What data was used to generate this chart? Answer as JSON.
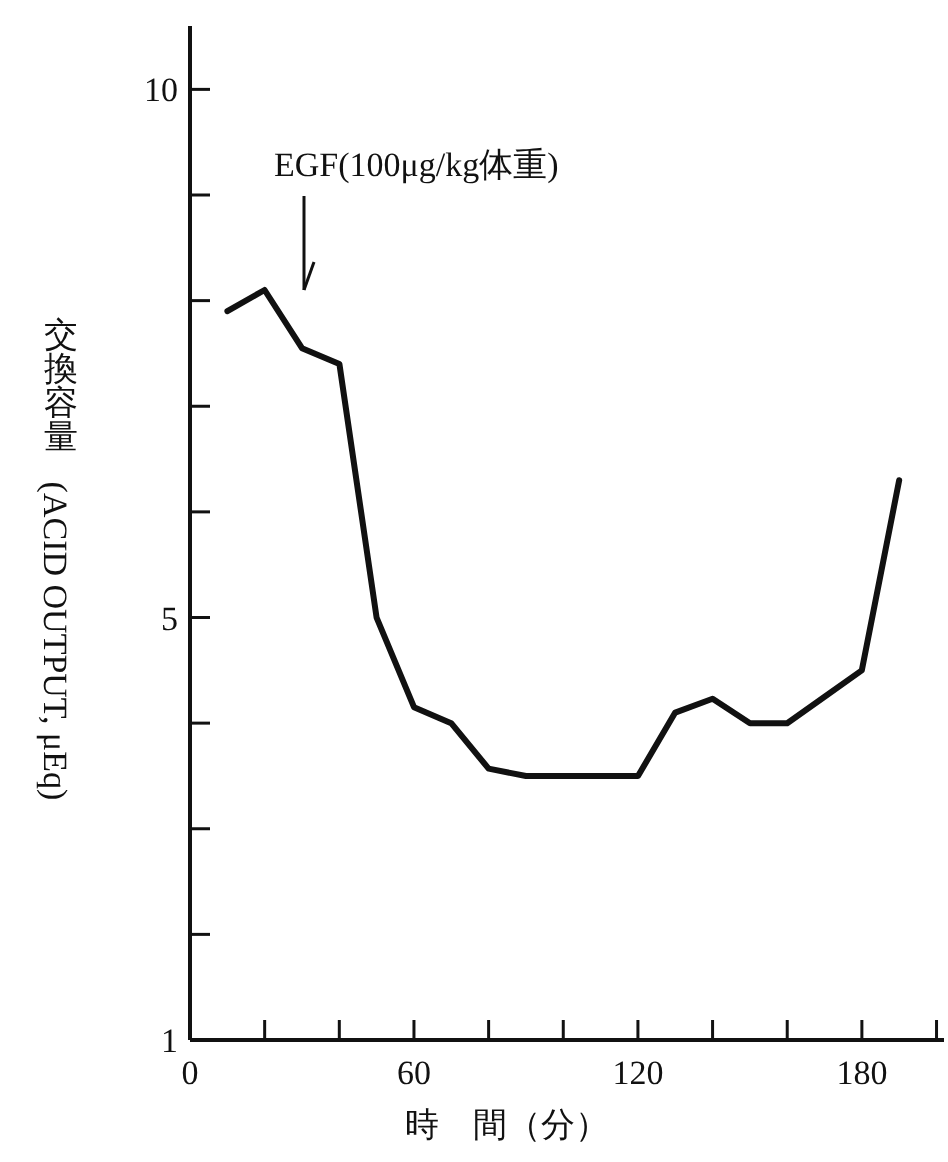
{
  "chart_data": {
    "type": "line",
    "xlabel": "時　間（分）",
    "ylabel": "交換容量(ACID OUTPUT, μEq)",
    "annotations": [
      "EGF(100μg/kg体重)"
    ],
    "x": [
      10,
      20,
      30,
      40,
      50,
      60,
      70,
      80,
      90,
      100,
      110,
      120,
      130,
      140,
      150,
      160,
      170,
      180,
      190
    ],
    "series": [
      {
        "color": "#111111",
        "values": [
          7.9,
          8.1,
          7.55,
          7.4,
          5.0,
          4.15,
          4.0,
          3.57,
          3.5,
          3.5,
          3.5,
          3.5,
          4.1,
          4.23,
          4.0,
          4.0,
          4.25,
          4.5,
          6.3
        ]
      }
    ],
    "xlim": [
      0,
      202
    ],
    "ylim": [
      1,
      10.6
    ],
    "xticks": [
      0,
      {
        "value": 20,
        "label": null
      },
      {
        "value": 40,
        "label": null
      },
      60,
      {
        "value": 80,
        "label": null
      },
      {
        "value": 100,
        "label": null
      },
      120,
      {
        "value": 140,
        "label": null
      },
      {
        "value": 160,
        "label": null
      },
      180,
      {
        "value": 200,
        "label": null
      }
    ],
    "yticks": [
      1,
      {
        "value": 2,
        "label": null
      },
      {
        "value": 3,
        "label": null
      },
      {
        "value": 4,
        "label": null
      },
      5,
      {
        "value": 6,
        "label": null
      },
      {
        "value": 7,
        "label": null
      },
      {
        "value": 8,
        "label": null
      },
      {
        "value": 9,
        "label": null
      },
      10
    ],
    "grid": false,
    "marker": "none",
    "line_style": "solid"
  }
}
